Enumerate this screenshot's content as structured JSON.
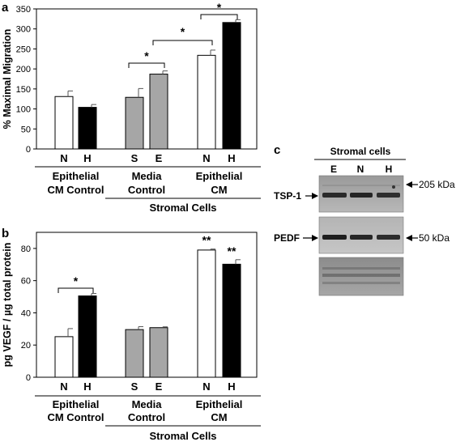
{
  "figure": {
    "panels": [
      {
        "letter": "a"
      },
      {
        "letter": "b"
      },
      {
        "letter": "c"
      }
    ]
  },
  "chart_data": [
    {
      "type": "bar",
      "panel": "a",
      "ylabel": "% Maximal Migration",
      "ylim": [
        0,
        350
      ],
      "yticks": [
        0,
        50,
        100,
        150,
        200,
        250,
        300,
        350
      ],
      "categories": [
        "N",
        "H",
        "S",
        "E",
        "N",
        "H"
      ],
      "values": [
        131,
        104,
        129,
        187,
        234,
        316
      ],
      "errors": [
        14,
        7,
        22,
        8,
        13,
        7
      ],
      "bar_colors": [
        "#ffffff",
        "#000000",
        "#a6a6a6",
        "#a6a6a6",
        "#ffffff",
        "#000000"
      ],
      "groups": [
        {
          "label_lines": [
            "Epithelial",
            "CM Control"
          ],
          "indices": [
            0,
            1
          ]
        },
        {
          "label_lines": [
            "Media",
            "Control"
          ],
          "indices": [
            2,
            3
          ]
        },
        {
          "label_lines": [
            "Epithelial",
            "CM"
          ],
          "indices": [
            4,
            5
          ]
        }
      ],
      "supergroup": {
        "label": "Stromal Cells",
        "groups": [
          1,
          2
        ]
      },
      "significance": [
        {
          "text": "*",
          "from": 2,
          "to": 3
        },
        {
          "text": "*",
          "from": 3,
          "to": 4
        },
        {
          "text": "*",
          "from": 4,
          "to": 5
        }
      ]
    },
    {
      "type": "bar",
      "panel": "b",
      "ylabel": "pg VEGF / µg total protein",
      "ylim": [
        0,
        90
      ],
      "yticks": [
        0,
        20,
        40,
        60,
        80
      ],
      "categories": [
        "N",
        "H",
        "S",
        "E",
        "N",
        "H"
      ],
      "values": [
        25.2,
        50.5,
        29.6,
        30.8,
        79.0,
        70.2
      ],
      "errors": [
        5.0,
        1.5,
        1.8,
        0.5,
        0.6,
        2.8
      ],
      "bar_colors": [
        "#ffffff",
        "#000000",
        "#a6a6a6",
        "#a6a6a6",
        "#ffffff",
        "#000000"
      ],
      "groups": [
        {
          "label_lines": [
            "Epithelial",
            "CM Control"
          ],
          "indices": [
            0,
            1
          ]
        },
        {
          "label_lines": [
            "Media",
            "Control"
          ],
          "indices": [
            2,
            3
          ]
        },
        {
          "label_lines": [
            "Epithelial",
            "CM"
          ],
          "indices": [
            4,
            5
          ]
        }
      ],
      "supergroup": {
        "label": "Stromal Cells",
        "groups": [
          1,
          2
        ]
      },
      "significance": [
        {
          "text": "*",
          "from": 0,
          "to": 1
        },
        {
          "text": "**",
          "on": 4
        },
        {
          "text": "**",
          "on": 5
        }
      ]
    }
  ],
  "western_blot": {
    "title": "Stromal cells",
    "lanes": [
      "E",
      "N",
      "H"
    ],
    "rows": [
      {
        "left_label": "TSP-1",
        "marker": "205 kDa"
      },
      {
        "left_label": "PEDF",
        "marker": "50 kDa"
      },
      {
        "left_label": "",
        "marker": ""
      }
    ]
  }
}
